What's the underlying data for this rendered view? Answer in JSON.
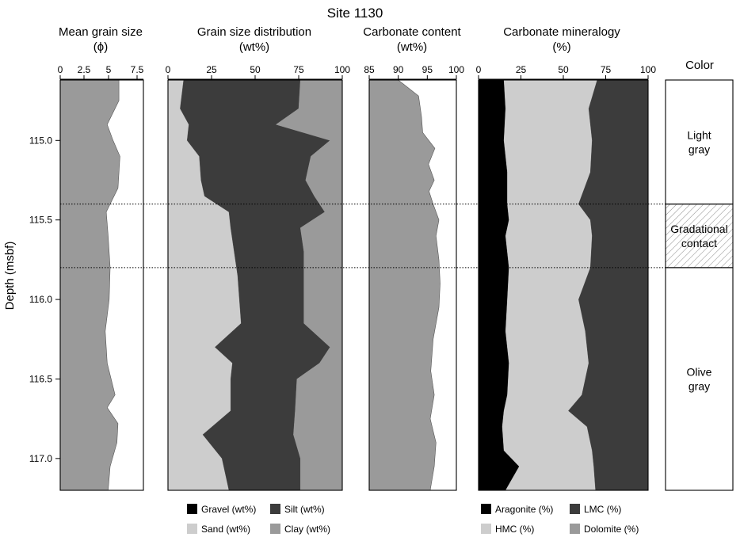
{
  "title": "Site 1130",
  "colors": {
    "black": "#000000",
    "dark": "#3c3c3c",
    "mid": "#9a9a9a",
    "light": "#cdcdcd",
    "white": "#ffffff"
  },
  "chart_data": [
    {
      "type": "area",
      "title": "Mean grain size",
      "unit": "(ϕ)",
      "xlim": [
        0,
        8.5
      ],
      "xticks": [
        "0",
        "2.5",
        "5",
        "7.5"
      ],
      "ylabel": "Depth  (msbf)",
      "ylim": [
        114.62,
        117.2
      ],
      "yticks": [
        "115.0",
        "115.5",
        "116.0",
        "116.5",
        "117.0"
      ],
      "depth": [
        114.62,
        114.75,
        114.9,
        115.0,
        115.1,
        115.3,
        115.45,
        115.6,
        115.8,
        116.0,
        116.2,
        116.4,
        116.6,
        116.68,
        116.78,
        116.9,
        117.05,
        117.2
      ],
      "values": [
        6.0,
        6.0,
        4.8,
        5.4,
        6.1,
        5.9,
        4.7,
        4.9,
        5.1,
        5.0,
        4.6,
        4.8,
        5.6,
        4.8,
        5.9,
        5.8,
        5.1,
        4.9
      ]
    },
    {
      "type": "area",
      "title": "Grain size distribution",
      "unit": "(wt%)",
      "xlim": [
        0,
        100
      ],
      "xticks": [
        "0",
        "25",
        "50",
        "75",
        "100"
      ],
      "depth": [
        114.62,
        114.8,
        114.9,
        115.0,
        115.1,
        115.25,
        115.35,
        115.45,
        115.55,
        115.7,
        115.85,
        116.0,
        116.15,
        116.3,
        116.4,
        116.5,
        116.7,
        116.85,
        117.0,
        117.2
      ],
      "series": [
        {
          "name": "Sand (wt%)",
          "values": [
            9,
            7,
            12,
            11,
            18,
            19,
            21,
            35,
            36,
            38,
            40,
            41,
            42,
            27,
            37,
            36,
            36,
            20,
            31,
            35
          ]
        },
        {
          "name": "Silt (wt%)",
          "values": [
            67,
            68,
            50,
            82,
            64,
            60,
            63,
            55,
            40,
            40,
            38,
            37,
            36,
            66,
            50,
            38,
            37,
            52,
            45,
            41
          ]
        },
        {
          "name": "Clay (wt%)",
          "values": [
            24,
            25,
            38,
            7,
            18,
            21,
            16,
            10,
            24,
            22,
            22,
            22,
            22,
            7,
            13,
            26,
            27,
            28,
            24,
            24
          ]
        }
      ]
    },
    {
      "type": "area",
      "title": "Carbonate content",
      "unit": "(wt%)",
      "xlim": [
        85,
        100
      ],
      "xticks": [
        "85",
        "90",
        "95",
        "100"
      ],
      "depth": [
        114.62,
        114.72,
        114.85,
        114.95,
        115.05,
        115.15,
        115.25,
        115.32,
        115.4,
        115.5,
        115.6,
        115.75,
        115.9,
        116.05,
        116.25,
        116.45,
        116.6,
        116.75,
        116.9,
        117.05,
        117.2
      ],
      "values": [
        90.0,
        93.5,
        94.0,
        94.2,
        96.3,
        95.2,
        96.2,
        95.3,
        96.0,
        97.0,
        96.5,
        97.0,
        97.2,
        97.0,
        96.0,
        95.6,
        96.2,
        95.5,
        96.5,
        96.2,
        95.5
      ]
    },
    {
      "type": "area",
      "title": "Carbonate mineralogy",
      "unit": "(%)",
      "xlim": [
        0,
        100
      ],
      "xticks": [
        "0",
        "25",
        "50",
        "75",
        "100"
      ],
      "depth": [
        114.62,
        114.8,
        115.0,
        115.2,
        115.4,
        115.5,
        115.6,
        115.8,
        116.0,
        116.2,
        116.4,
        116.6,
        116.7,
        116.8,
        116.95,
        117.05,
        117.2
      ],
      "series": [
        {
          "name": "Aragonite (%)",
          "values": [
            15,
            16,
            15,
            17,
            17,
            18,
            16,
            18,
            17,
            16,
            18,
            17,
            15,
            14,
            15,
            24,
            16
          ]
        },
        {
          "name": "HMC (%)",
          "values": [
            55,
            49,
            52,
            49,
            42,
            48,
            51,
            48,
            42,
            47,
            47,
            44,
            38,
            50,
            52,
            44,
            53
          ]
        },
        {
          "name": "LMC (%)",
          "values": [
            30,
            35,
            33,
            34,
            41,
            34,
            33,
            34,
            41,
            37,
            35,
            39,
            47,
            36,
            33,
            32,
            31
          ]
        },
        {
          "name": "Dolomite (%)",
          "values": [
            0,
            0,
            0,
            0,
            0,
            0,
            0,
            0,
            0,
            0,
            0,
            0,
            0,
            0,
            0,
            0,
            0
          ]
        }
      ]
    }
  ],
  "color_column": {
    "title": "Color",
    "zones": [
      {
        "lines": [
          "Light",
          "gray"
        ],
        "top": 114.62,
        "bottom": 115.4,
        "hatched": false
      },
      {
        "lines": [
          "Gradational",
          "contact"
        ],
        "top": 115.4,
        "bottom": 115.8,
        "hatched": true
      },
      {
        "lines": [
          "Olive",
          "gray"
        ],
        "top": 115.8,
        "bottom": 117.2,
        "hatched": false
      }
    ]
  },
  "contacts_depth": [
    115.4,
    115.8
  ],
  "legends": {
    "grain": [
      {
        "label": "Gravel (wt%)",
        "color": "#000000"
      },
      {
        "label": "Silt (wt%)",
        "color": "#3c3c3c"
      },
      {
        "label": "Sand (wt%)",
        "color": "#cdcdcd"
      },
      {
        "label": "Clay (wt%)",
        "color": "#9a9a9a"
      }
    ],
    "mineral": [
      {
        "label": "Aragonite (%)",
        "color": "#000000"
      },
      {
        "label": "LMC (%)",
        "color": "#3c3c3c"
      },
      {
        "label": "HMC (%)",
        "color": "#cdcdcd"
      },
      {
        "label": "Dolomite (%)",
        "color": "#9a9a9a"
      }
    ]
  }
}
